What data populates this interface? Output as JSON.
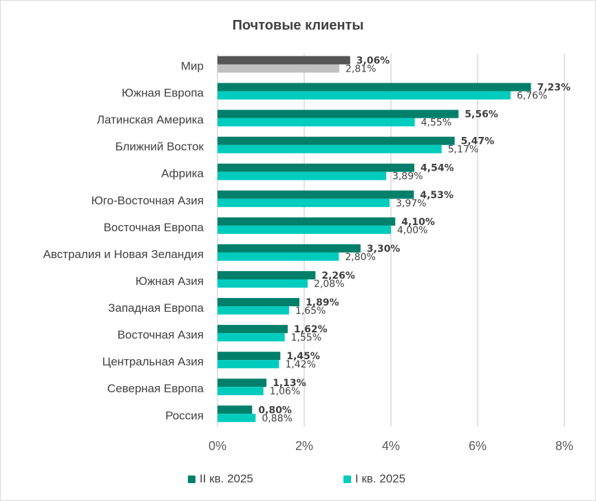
{
  "chart_data": {
    "type": "bar",
    "orientation": "horizontal",
    "title": "Почтовые клиенты",
    "categories": [
      "Мир",
      "Южная Европа",
      "Латинская Америка",
      "Ближний Восток",
      "Африка",
      "Юго-Восточная Азия",
      "Восточная Европа",
      "Австралия и Новая Зеландия",
      "Южная Азия",
      "Западная Европа",
      "Восточная Азия",
      "Центральная Азия",
      "Северная Европа",
      "Россия"
    ],
    "series": [
      {
        "name": "II кв. 2025",
        "values": [
          3.06,
          7.23,
          5.56,
          5.47,
          4.54,
          4.53,
          4.1,
          3.3,
          2.26,
          1.89,
          1.62,
          1.45,
          1.13,
          0.8
        ],
        "labels": [
          "3,06%",
          "7,23%",
          "5,56%",
          "5,47%",
          "4,54%",
          "4,53%",
          "4,10%",
          "3,30%",
          "2,26%",
          "1,89%",
          "1,62%",
          "1,45%",
          "1,13%",
          "0,80%"
        ]
      },
      {
        "name": "I кв. 2025",
        "values": [
          2.81,
          6.76,
          4.55,
          5.17,
          3.89,
          3.97,
          4.0,
          2.8,
          2.08,
          1.65,
          1.55,
          1.42,
          1.06,
          0.88
        ],
        "labels": [
          "2,81%",
          "6,76%",
          "4,55%",
          "5,17%",
          "3,89%",
          "3,97%",
          "4,00%",
          "2,80%",
          "2,08%",
          "1,65%",
          "1,55%",
          "1,42%",
          "1,06%",
          "0,88%"
        ]
      }
    ],
    "highlight_category": "Мир",
    "colors": {
      "series1": "#00806b",
      "series2": "#00ccbe",
      "highlight1": "#555555",
      "highlight2": "#c0c0c0",
      "grid": "#d9d9d9"
    },
    "xlim": [
      0,
      8
    ],
    "xticks": [
      "0%",
      "2%",
      "4%",
      "6%",
      "8%"
    ],
    "grid": true,
    "legend_position": "bottom"
  }
}
